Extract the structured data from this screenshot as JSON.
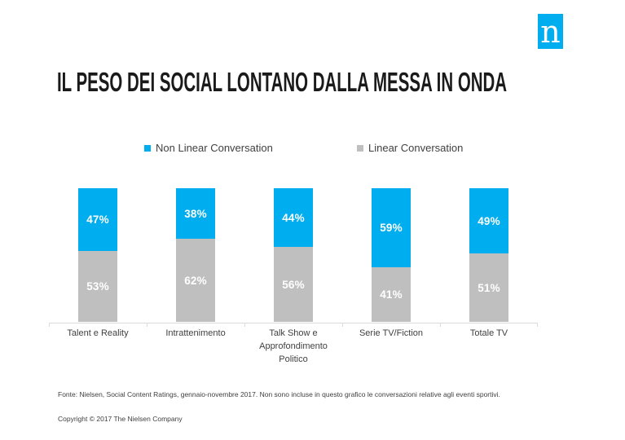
{
  "logo": {
    "letter": "n",
    "bg_color": "#00adee",
    "letter_color": "#ffffff"
  },
  "title": "IL PESO DEI SOCIAL LONTANO DALLA MESSA IN ONDA",
  "legend": {
    "items": [
      {
        "label": "Non Linear Conversation",
        "color": "#00adee"
      },
      {
        "label": "Linear Conversation",
        "color": "#bfbfbf"
      }
    ]
  },
  "chart_data": {
    "type": "bar",
    "stacked": true,
    "orientation": "vertical",
    "categories": [
      "Talent e Reality",
      "Intrattenimento",
      "Talk Show e Approfondimento Politico",
      "Serie TV/Fiction",
      "Totale TV"
    ],
    "series": [
      {
        "name": "Non Linear Conversation",
        "color": "#00adee",
        "stack_position": "top",
        "values": [
          47,
          38,
          44,
          59,
          49
        ]
      },
      {
        "name": "Linear Conversation",
        "color": "#bfbfbf",
        "stack_position": "bottom",
        "values": [
          53,
          62,
          56,
          41,
          51
        ]
      }
    ],
    "value_suffix": "%",
    "ylim": [
      0,
      100
    ],
    "grid": false,
    "legend_position": "top",
    "data_labels": "inside-center",
    "axis_color": "#d9d9d9"
  },
  "footer": {
    "source": "Fonte: Nielsen, Social Content Ratings, gennaio-novembre 2017. Non sono incluse in questo grafico le conversazioni relative agli eventi sportivi.",
    "copyright": "Copyright © 2017 The Nielsen Company"
  },
  "colors": {
    "non_linear": "#00adee",
    "linear": "#bfbfbf",
    "axis": "#d9d9d9",
    "body_text": "#404040",
    "title_text": "#1a1a1a",
    "bar_label_text": "#ffffff"
  }
}
